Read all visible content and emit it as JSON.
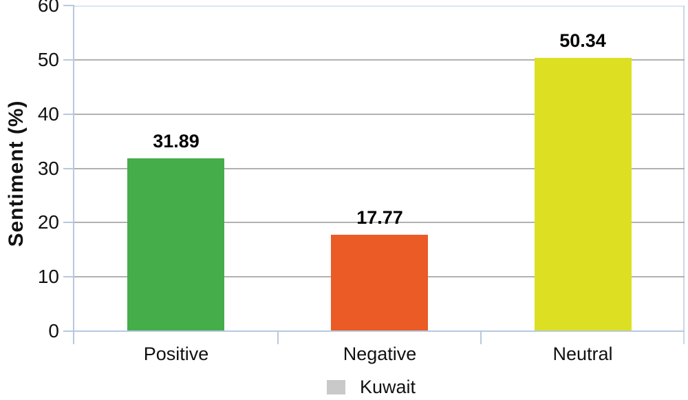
{
  "chart_data": {
    "type": "bar",
    "title": "",
    "xlabel": "",
    "ylabel": "Sentiment (%)",
    "categories": [
      "Positive",
      "Negative",
      "Neutral"
    ],
    "series": [
      {
        "name": "Kuwait",
        "values": [
          31.89,
          17.77,
          50.34
        ]
      }
    ],
    "value_labels": [
      "31.89",
      "17.77",
      "50.34"
    ],
    "ylim": [
      0,
      60
    ],
    "yticks": [
      0,
      10,
      20,
      30,
      40,
      50,
      60
    ],
    "grid": "horizontal",
    "legend_position": "bottom-center",
    "bar_colors": [
      "#45ad49",
      "#ea5b26",
      "#dde022"
    ],
    "legend_swatch_color": "#c9c9c9",
    "colors": {
      "axis": "#b7c8e0",
      "plot_border_top": "#dbe5f2",
      "plot_border_right": "#c9d6e9",
      "gridline": "#b1b1b1",
      "text": "#111111"
    }
  }
}
